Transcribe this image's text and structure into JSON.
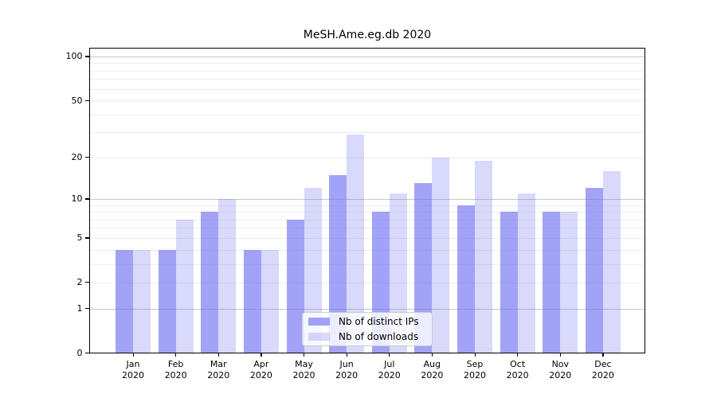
{
  "title": "MeSH.Ame.eg.db 2020",
  "legend": {
    "items": [
      {
        "label": "Nb of distinct IPs"
      },
      {
        "label": "Nb of downloads"
      }
    ]
  },
  "y_axis": {
    "tick_labels": [
      "100",
      "50",
      "20",
      "10",
      "5",
      "2",
      "1",
      "0"
    ],
    "tick_values": [
      100,
      50,
      20,
      10,
      5,
      2,
      1,
      0
    ]
  },
  "x_axis": {
    "months": [
      "Jan",
      "Feb",
      "Mar",
      "Apr",
      "May",
      "Jun",
      "Jul",
      "Aug",
      "Sep",
      "Oct",
      "Nov",
      "Dec"
    ],
    "year": "2020"
  },
  "colors": {
    "bar_base": "#696bf0",
    "ips_alpha": 0.62,
    "downloads_alpha": 0.26,
    "grid_major": "#c8c8c8",
    "grid_minor": "#ededed",
    "legend_border": "#cccccc",
    "spine": "#000000"
  },
  "chart_data": {
    "type": "bar",
    "title": "MeSH.Ame.eg.db 2020",
    "categories": [
      "Jan 2020",
      "Feb 2020",
      "Mar 2020",
      "Apr 2020",
      "May 2020",
      "Jun 2020",
      "Jul 2020",
      "Aug 2020",
      "Sep 2020",
      "Oct 2020",
      "Nov 2020",
      "Dec 2020"
    ],
    "series": [
      {
        "name": "Nb of distinct IPs",
        "values": [
          4,
          4,
          8,
          4,
          7,
          15,
          8,
          13,
          9,
          8,
          8,
          12
        ]
      },
      {
        "name": "Nb of downloads",
        "values": [
          4,
          7,
          10,
          4,
          12,
          29,
          11,
          20,
          19,
          11,
          8,
          16
        ]
      }
    ],
    "yscale": "log1p",
    "y_ticks": [
      0,
      1,
      2,
      5,
      10,
      20,
      50,
      100
    ],
    "y_minor_gridlines": [
      2,
      3,
      4,
      5,
      6,
      7,
      8,
      9,
      20,
      30,
      40,
      50,
      60,
      70,
      80,
      90
    ],
    "y_major_gridlines": [
      1,
      10,
      100
    ],
    "ylim": [
      0,
      115
    ],
    "grid": "horizontal",
    "legend_position": "inside-bottom-center"
  }
}
